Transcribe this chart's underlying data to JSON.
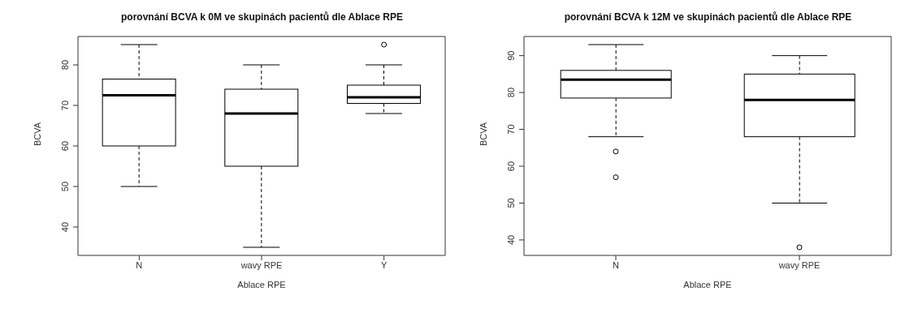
{
  "chart_data": [
    {
      "type": "box",
      "title": "porovnání BCVA k 0M ve skupinách pacientů dle Ablace RPE",
      "xlabel": "Ablace RPE",
      "ylabel": "BCVA",
      "color": "#000000",
      "categories": [
        "N",
        "wavy RPE",
        "Y"
      ],
      "boxes": [
        {
          "low": 50,
          "q1": 60,
          "median": 72.5,
          "q3": 76.5,
          "high": 85
        },
        {
          "low": 35,
          "q1": 55,
          "median": 68,
          "q3": 74,
          "high": 80
        },
        {
          "low": 68,
          "q1": 70.5,
          "median": 72,
          "q3": 75,
          "high": 80,
          "outliers": [
            85
          ]
        }
      ],
      "ylim": [
        33,
        87
      ],
      "yticks": [
        40,
        50,
        60,
        70,
        80
      ]
    },
    {
      "type": "box",
      "title": "porovnání BCVA k 12M ve skupinách pacientů dle Ablace RPE",
      "xlabel": "Ablace RPE",
      "ylabel": "BCVA",
      "color": "#000000",
      "categories": [
        "N",
        "wavy RPE"
      ],
      "boxes": [
        {
          "low": 68,
          "q1": 78.5,
          "median": 83.5,
          "q3": 86,
          "high": 93,
          "outliers": [
            64,
            57
          ]
        },
        {
          "low": 50,
          "q1": 68,
          "median": 78,
          "q3": 85,
          "high": 90,
          "outliers": [
            38
          ]
        }
      ],
      "ylim": [
        35.8,
        95.2
      ],
      "yticks": [
        40,
        50,
        60,
        70,
        80,
        90
      ]
    }
  ]
}
